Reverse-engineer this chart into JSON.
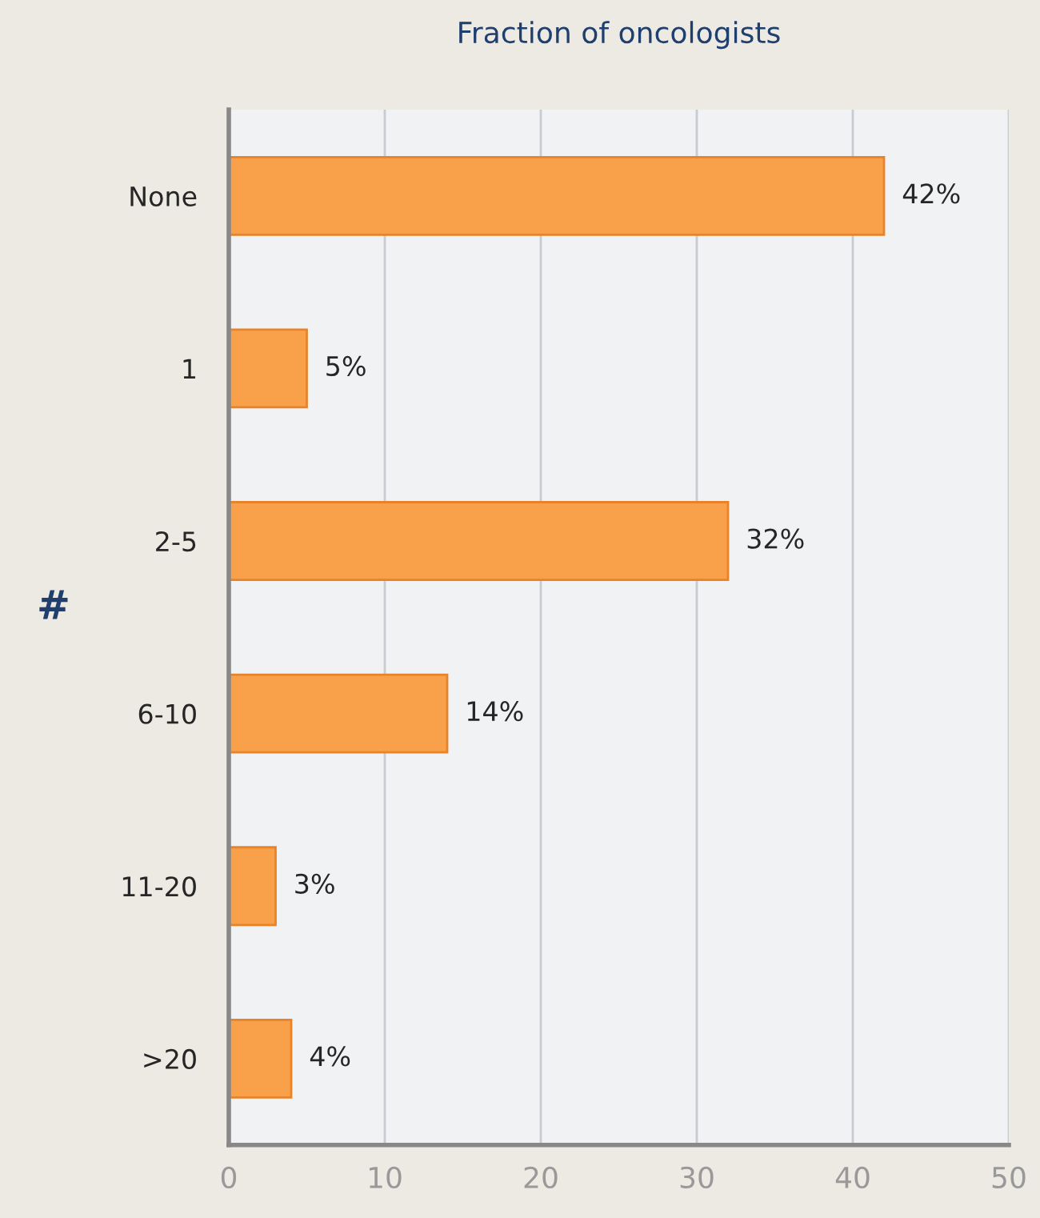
{
  "chart_data": {
    "type": "bar",
    "orientation": "horizontal",
    "title": "Fraction of oncologists",
    "ylabel": "#",
    "categories": [
      "None",
      "1",
      "2-5",
      "6-10",
      "11-20",
      ">20"
    ],
    "values": [
      42,
      5,
      32,
      14,
      3,
      4
    ],
    "value_labels": [
      "42%",
      "5%",
      "32%",
      "14%",
      "3%",
      "4%"
    ],
    "color": "#f9a04a",
    "xlim": [
      0,
      50
    ],
    "xticks": [
      0,
      10,
      20,
      30,
      40,
      50
    ],
    "grid": "x"
  }
}
